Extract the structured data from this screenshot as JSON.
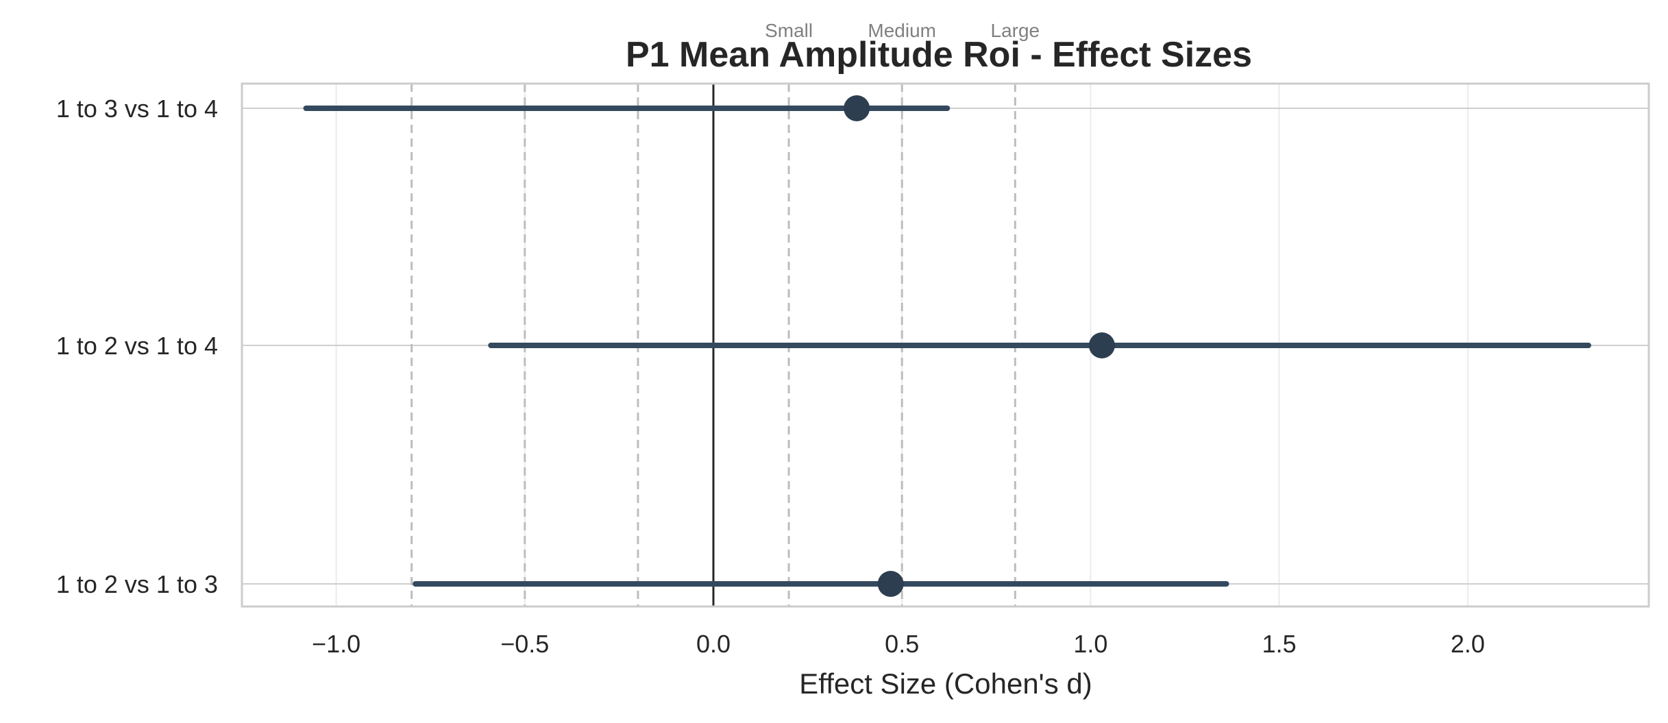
{
  "chart_data": {
    "type": "forest",
    "title": "P1 Mean Amplitude Roi - Effect Sizes",
    "xlabel": "Effect Size (Cohen's d)",
    "ylabel": "",
    "xlim": [
      -1.25,
      2.48
    ],
    "x_ticks": [
      "−1.0",
      "−0.5",
      "0.0",
      "0.5",
      "1.0",
      "1.5",
      "2.0"
    ],
    "x_tick_values": [
      -1.0,
      -0.5,
      0.0,
      0.5,
      1.0,
      1.5,
      2.0
    ],
    "categories": [
      "1 to 3 vs 1 to 4",
      "1 to 2 vs 1 to 4",
      "1 to 2 vs 1 to 3"
    ],
    "estimates": [
      0.38,
      1.03,
      0.47
    ],
    "ci_lower": [
      -1.08,
      -0.59,
      -0.79
    ],
    "ci_upper": [
      0.62,
      2.32,
      1.36
    ],
    "reference_line": 0,
    "threshold_lines": [
      -0.8,
      -0.5,
      -0.2,
      0.2,
      0.5,
      0.8
    ],
    "threshold_labels": [
      {
        "text": "Small",
        "value": 0.2
      },
      {
        "text": "Medium",
        "value": 0.5
      },
      {
        "text": "Large",
        "value": 0.8
      }
    ],
    "grid": true,
    "colors": {
      "point": "#2c3e50",
      "ci_line": "#34495e",
      "grid": "#ebebeb",
      "threshold": "#bdbdbd",
      "reference": "#262626",
      "spine": "#cccccc"
    }
  }
}
